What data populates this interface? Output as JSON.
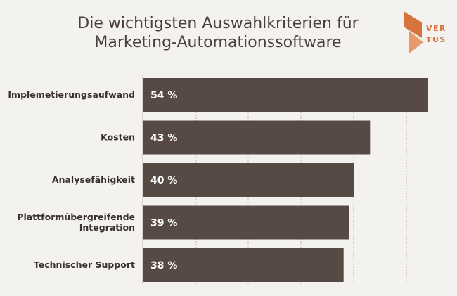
{
  "chart_data": {
    "type": "bar",
    "orientation": "horizontal",
    "title_lines": [
      "Die wichtigsten Auswahlkriterien für",
      "Marketing-Automationssoftware"
    ],
    "categories": [
      [
        "Implemetierungsaufwand"
      ],
      [
        "Kosten"
      ],
      [
        "Analysefähigkeit"
      ],
      [
        "Plattformübergreifende",
        "Integration"
      ],
      [
        "Technischer Support"
      ]
    ],
    "values": [
      54,
      43,
      40,
      39,
      38
    ],
    "value_labels": [
      "54 %",
      "43 %",
      "40 %",
      "39 %",
      "38 %"
    ],
    "unit": "%",
    "xlim": [
      0,
      54
    ],
    "grid": true,
    "bar_color": "#574a45"
  },
  "logo": {
    "line1": "VER",
    "line2": "TUS",
    "color": "#d7733f"
  }
}
